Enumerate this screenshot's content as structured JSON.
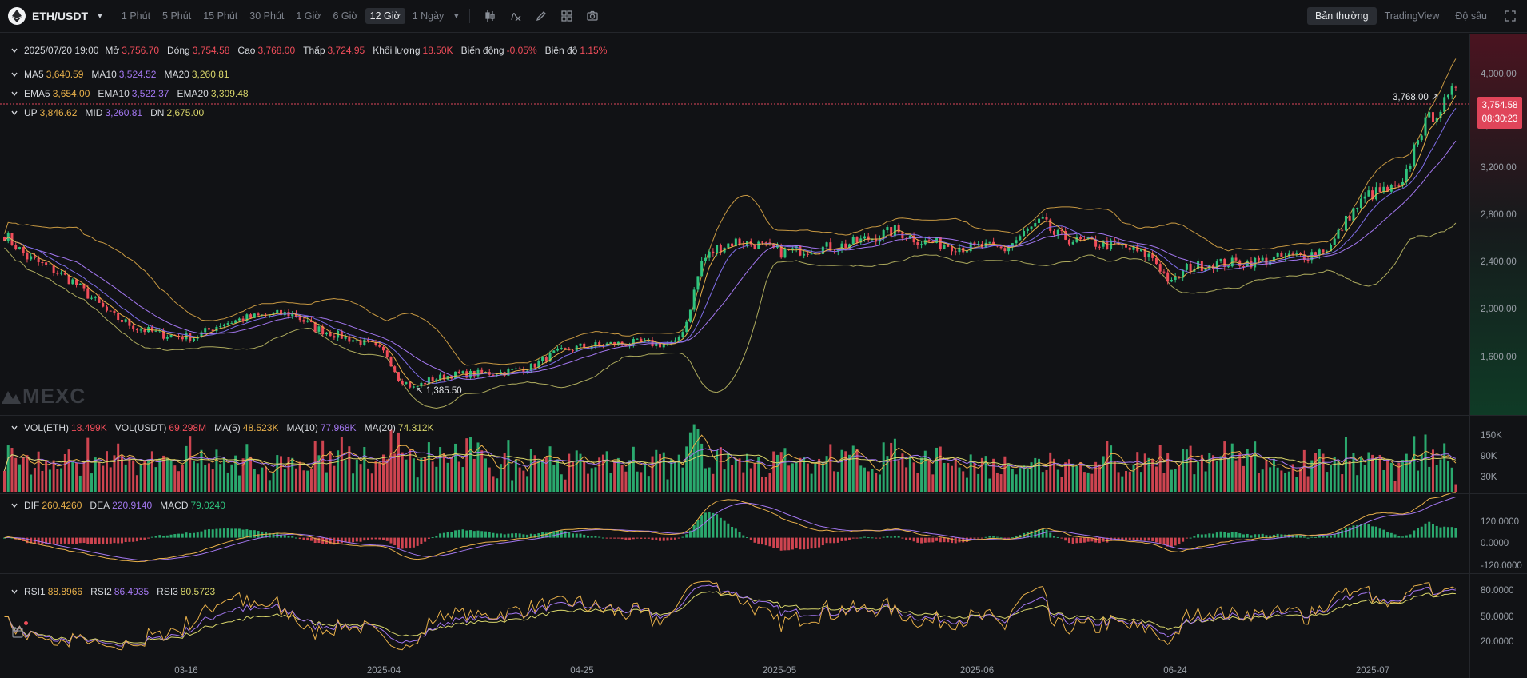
{
  "symbol": {
    "name": "ETH/USDT"
  },
  "intervals": [
    "1 Phút",
    "5 Phút",
    "15 Phút",
    "30 Phút",
    "1 Giờ",
    "6 Giờ",
    "12 Giờ",
    "1 Ngày"
  ],
  "active_interval": "12 Giờ",
  "views": {
    "normal": "Bản thường",
    "tradingview": "TradingView",
    "depth": "Độ sâu"
  },
  "ohlc": {
    "date": "2025/07/20 19:00",
    "open_label": "Mở",
    "open": "3,756.70",
    "close_label": "Đóng",
    "close": "3,754.58",
    "high_label": "Cao",
    "high": "3,768.00",
    "low_label": "Thấp",
    "low": "3,724.95",
    "vol_label": "Khối lượng",
    "vol": "18.50K",
    "change_label": "Biến động",
    "change": "-0.05%",
    "amp_label": "Biên độ",
    "amp": "1.15%"
  },
  "ma": {
    "ma5_label": "MA5",
    "ma5": "3,640.59",
    "ma10_label": "MA10",
    "ma10": "3,524.52",
    "ma20_label": "MA20",
    "ma20": "3,260.81"
  },
  "ema": {
    "ema5_label": "EMA5",
    "ema5": "3,654.00",
    "ema10_label": "EMA10",
    "ema10": "3,522.37",
    "ema20_label": "EMA20",
    "ema20": "3,309.48"
  },
  "boll": {
    "up_label": "UP",
    "up": "3,846.62",
    "mid_label": "MID",
    "mid": "3,260.81",
    "dn_label": "DN",
    "dn": "2,675.00"
  },
  "price_axis": [
    "4,000.00",
    "3,600.00",
    "3,200.00",
    "2,800.00",
    "2,400.00",
    "2,000.00",
    "1,600.00"
  ],
  "last_price": {
    "price": "3,754.58",
    "countdown": "08:30:23"
  },
  "high_marker": "3,768.00",
  "low_marker": "1,385.50",
  "watermark": "MEXC",
  "volume": {
    "vol_eth_label": "VOL(ETH)",
    "vol_eth": "18.499K",
    "vol_usdt_label": "VOL(USDT)",
    "vol_usdt": "69.298M",
    "ma5_label": "MA(5)",
    "ma5": "48.523K",
    "ma10_label": "MA(10)",
    "ma10": "77.968K",
    "ma20_label": "MA(20)",
    "ma20": "74.312K",
    "axis": [
      "150K",
      "90K",
      "30K"
    ]
  },
  "macd": {
    "dif_label": "DIF",
    "dif": "260.4260",
    "dea_label": "DEA",
    "dea": "220.9140",
    "macd_label": "MACD",
    "macd": "79.0240",
    "axis": [
      "120.0000",
      "0.0000",
      "-120.0000"
    ]
  },
  "rsi": {
    "rsi1_label": "RSI1",
    "rsi1": "88.8966",
    "rsi2_label": "RSI2",
    "rsi2": "86.4935",
    "rsi3_label": "RSI3",
    "rsi3": "80.5723",
    "axis": [
      "80.0000",
      "50.0000",
      "20.0000"
    ]
  },
  "x_axis": [
    "03-16",
    "2025-04",
    "04-25",
    "2025-05",
    "2025-06",
    "06-24",
    "2025-07"
  ],
  "colors": {
    "up": "#2fc47e",
    "down": "#f04d5a",
    "ma5": "#e8b04a",
    "ma10": "#a377f0",
    "ma20": "#d8d56a",
    "bg": "#111215"
  },
  "chart_data": {
    "type": "candlestick",
    "price_ylim": [
      1300,
      4150
    ],
    "anchors_close": [
      [
        0,
        2650
      ],
      [
        6,
        2480
      ],
      [
        12,
        2400
      ],
      [
        18,
        2300
      ],
      [
        22,
        2200
      ],
      [
        28,
        2050
      ],
      [
        35,
        1950
      ],
      [
        42,
        1900
      ],
      [
        50,
        1880
      ],
      [
        57,
        1980
      ],
      [
        63,
        2020
      ],
      [
        70,
        2050
      ],
      [
        76,
        2060
      ],
      [
        82,
        1950
      ],
      [
        90,
        1880
      ],
      [
        97,
        1820
      ],
      [
        101,
        1750
      ],
      [
        104,
        1580
      ],
      [
        108,
        1500
      ],
      [
        112,
        1560
      ],
      [
        118,
        1600
      ],
      [
        125,
        1610
      ],
      [
        132,
        1620
      ],
      [
        139,
        1660
      ],
      [
        145,
        1760
      ],
      [
        152,
        1810
      ],
      [
        160,
        1830
      ],
      [
        168,
        1840
      ],
      [
        173,
        1830
      ],
      [
        177,
        1830
      ],
      [
        180,
        2000
      ],
      [
        184,
        2450
      ],
      [
        188,
        2550
      ],
      [
        193,
        2600
      ],
      [
        198,
        2580
      ],
      [
        205,
        2520
      ],
      [
        212,
        2540
      ],
      [
        220,
        2560
      ],
      [
        228,
        2620
      ],
      [
        235,
        2680
      ],
      [
        242,
        2600
      ],
      [
        248,
        2580
      ],
      [
        254,
        2550
      ],
      [
        258,
        2560
      ],
      [
        264,
        2540
      ],
      [
        270,
        2680
      ],
      [
        274,
        2750
      ],
      [
        277,
        2650
      ],
      [
        283,
        2600
      ],
      [
        290,
        2580
      ],
      [
        296,
        2550
      ],
      [
        303,
        2480
      ],
      [
        308,
        2280
      ],
      [
        312,
        2400
      ],
      [
        318,
        2430
      ],
      [
        325,
        2440
      ],
      [
        331,
        2450
      ],
      [
        338,
        2480
      ],
      [
        344,
        2500
      ],
      [
        350,
        2560
      ],
      [
        355,
        2800
      ],
      [
        360,
        2950
      ],
      [
        365,
        2980
      ],
      [
        369,
        3000
      ],
      [
        373,
        3400
      ],
      [
        377,
        3550
      ],
      [
        381,
        3650
      ],
      [
        383,
        3754
      ]
    ],
    "volume_ylim": [
      0,
      170000
    ],
    "macd_ylim": [
      -180,
      210
    ],
    "rsi_ylim": [
      0,
      100
    ]
  }
}
